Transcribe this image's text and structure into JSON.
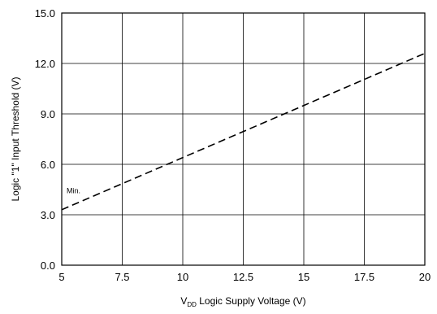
{
  "chart_data": {
    "type": "line",
    "title": "",
    "xlabel_prefix": "V",
    "xlabel_subscript": "DD",
    "xlabel_rest": " Logic Supply Voltage (V)",
    "ylabel": "Logic \"1\" Input Threshold (V)",
    "xlim": [
      5,
      20
    ],
    "ylim": [
      0,
      15
    ],
    "x_ticks": [
      "5",
      "7.5",
      "10",
      "12.5",
      "15",
      "17.5",
      "20"
    ],
    "y_ticks": [
      "0.0",
      "3.0",
      "6.0",
      "9.0",
      "12.0",
      "15.0"
    ],
    "grid": true,
    "series": [
      {
        "name": "Min.",
        "style": "dashed",
        "x": [
          5,
          20
        ],
        "y": [
          3.3,
          12.6
        ]
      }
    ],
    "annotations": [
      {
        "text": "Min.",
        "x": 5.2,
        "y": 4.0
      }
    ],
    "colors": {
      "line": "#000000",
      "grid": "#000000",
      "background": "#ffffff"
    }
  }
}
